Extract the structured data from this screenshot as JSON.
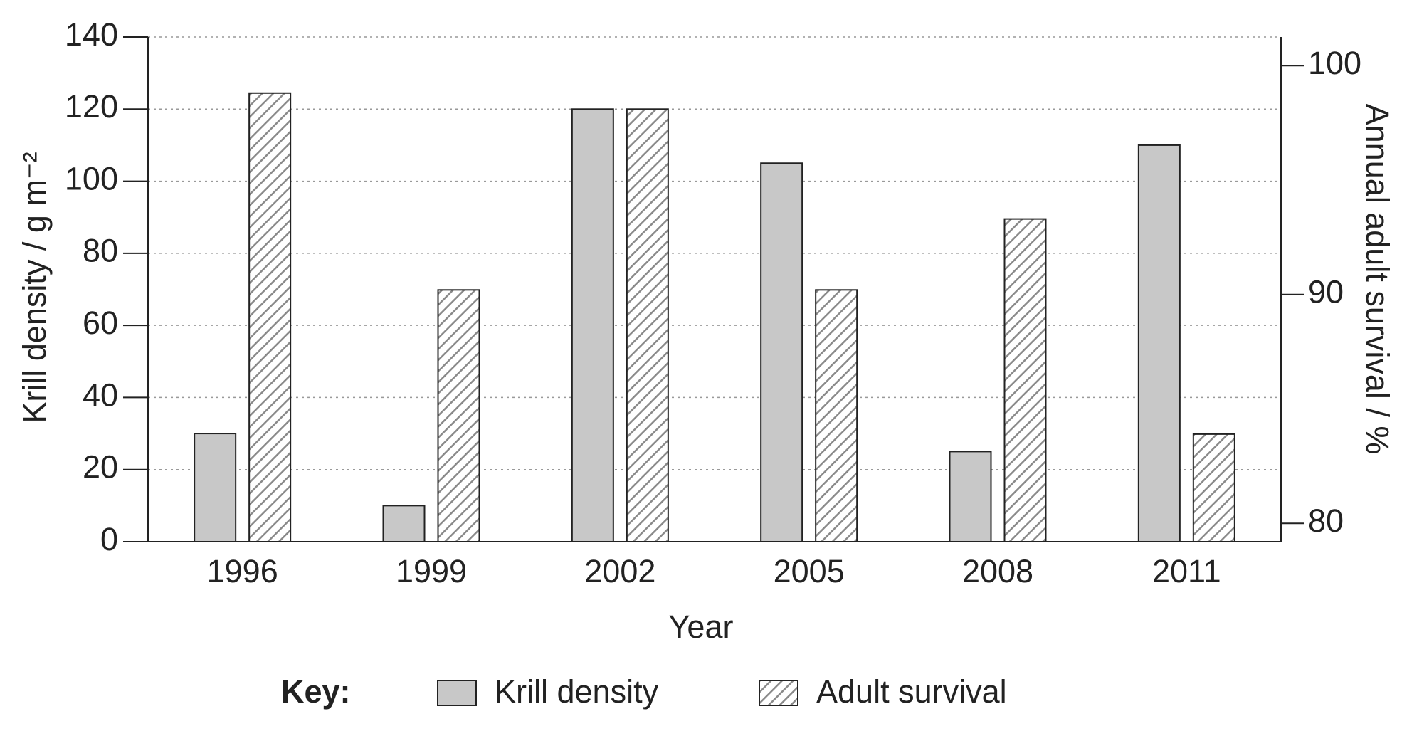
{
  "chart_data": {
    "type": "bar",
    "x_label": "Year",
    "y_label": "Krill density / g m⁻²",
    "y2_label": "Annual adult survival / %",
    "categories": [
      "1996",
      "1999",
      "2002",
      "2005",
      "2008",
      "2011"
    ],
    "series": [
      {
        "name": "Krill density",
        "color": "#c8c8c8",
        "values": [
          30,
          10,
          120,
          105,
          25,
          110
        ]
      },
      {
        "name": "Adult survival",
        "color": "#8a8a8a",
        "pattern": "hatch",
        "axis": "y2",
        "values": [
          98.8,
          90.2,
          98.1,
          90.2,
          93.3,
          83.9
        ]
      }
    ],
    "ylim": [
      0,
      140
    ],
    "yticks": [
      0,
      20,
      40,
      60,
      80,
      100,
      120,
      140
    ],
    "y2lim": [
      79.2,
      101.25
    ],
    "y2ticks": [
      80,
      90,
      100
    ],
    "grid": true,
    "legend_title": "Key:"
  }
}
